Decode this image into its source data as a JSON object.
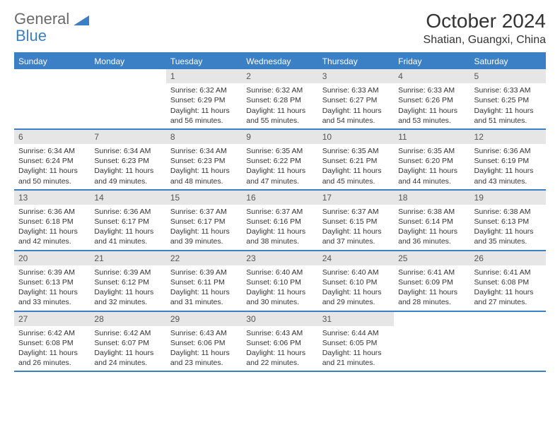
{
  "brand": {
    "text1": "General",
    "text2": "Blue"
  },
  "title": "October 2024",
  "location": "Shatian, Guangxi, China",
  "header_bg": "#3b7fc4",
  "daynum_bg": "#e6e6e6",
  "border_color": "#3b7fc4",
  "weekdays": [
    "Sunday",
    "Monday",
    "Tuesday",
    "Wednesday",
    "Thursday",
    "Friday",
    "Saturday"
  ],
  "weeks": [
    [
      null,
      null,
      {
        "n": "1",
        "sr": "6:32 AM",
        "ss": "6:29 PM",
        "dl": "11 hours and 56 minutes."
      },
      {
        "n": "2",
        "sr": "6:32 AM",
        "ss": "6:28 PM",
        "dl": "11 hours and 55 minutes."
      },
      {
        "n": "3",
        "sr": "6:33 AM",
        "ss": "6:27 PM",
        "dl": "11 hours and 54 minutes."
      },
      {
        "n": "4",
        "sr": "6:33 AM",
        "ss": "6:26 PM",
        "dl": "11 hours and 53 minutes."
      },
      {
        "n": "5",
        "sr": "6:33 AM",
        "ss": "6:25 PM",
        "dl": "11 hours and 51 minutes."
      }
    ],
    [
      {
        "n": "6",
        "sr": "6:34 AM",
        "ss": "6:24 PM",
        "dl": "11 hours and 50 minutes."
      },
      {
        "n": "7",
        "sr": "6:34 AM",
        "ss": "6:23 PM",
        "dl": "11 hours and 49 minutes."
      },
      {
        "n": "8",
        "sr": "6:34 AM",
        "ss": "6:23 PM",
        "dl": "11 hours and 48 minutes."
      },
      {
        "n": "9",
        "sr": "6:35 AM",
        "ss": "6:22 PM",
        "dl": "11 hours and 47 minutes."
      },
      {
        "n": "10",
        "sr": "6:35 AM",
        "ss": "6:21 PM",
        "dl": "11 hours and 45 minutes."
      },
      {
        "n": "11",
        "sr": "6:35 AM",
        "ss": "6:20 PM",
        "dl": "11 hours and 44 minutes."
      },
      {
        "n": "12",
        "sr": "6:36 AM",
        "ss": "6:19 PM",
        "dl": "11 hours and 43 minutes."
      }
    ],
    [
      {
        "n": "13",
        "sr": "6:36 AM",
        "ss": "6:18 PM",
        "dl": "11 hours and 42 minutes."
      },
      {
        "n": "14",
        "sr": "6:36 AM",
        "ss": "6:17 PM",
        "dl": "11 hours and 41 minutes."
      },
      {
        "n": "15",
        "sr": "6:37 AM",
        "ss": "6:17 PM",
        "dl": "11 hours and 39 minutes."
      },
      {
        "n": "16",
        "sr": "6:37 AM",
        "ss": "6:16 PM",
        "dl": "11 hours and 38 minutes."
      },
      {
        "n": "17",
        "sr": "6:37 AM",
        "ss": "6:15 PM",
        "dl": "11 hours and 37 minutes."
      },
      {
        "n": "18",
        "sr": "6:38 AM",
        "ss": "6:14 PM",
        "dl": "11 hours and 36 minutes."
      },
      {
        "n": "19",
        "sr": "6:38 AM",
        "ss": "6:13 PM",
        "dl": "11 hours and 35 minutes."
      }
    ],
    [
      {
        "n": "20",
        "sr": "6:39 AM",
        "ss": "6:13 PM",
        "dl": "11 hours and 33 minutes."
      },
      {
        "n": "21",
        "sr": "6:39 AM",
        "ss": "6:12 PM",
        "dl": "11 hours and 32 minutes."
      },
      {
        "n": "22",
        "sr": "6:39 AM",
        "ss": "6:11 PM",
        "dl": "11 hours and 31 minutes."
      },
      {
        "n": "23",
        "sr": "6:40 AM",
        "ss": "6:10 PM",
        "dl": "11 hours and 30 minutes."
      },
      {
        "n": "24",
        "sr": "6:40 AM",
        "ss": "6:10 PM",
        "dl": "11 hours and 29 minutes."
      },
      {
        "n": "25",
        "sr": "6:41 AM",
        "ss": "6:09 PM",
        "dl": "11 hours and 28 minutes."
      },
      {
        "n": "26",
        "sr": "6:41 AM",
        "ss": "6:08 PM",
        "dl": "11 hours and 27 minutes."
      }
    ],
    [
      {
        "n": "27",
        "sr": "6:42 AM",
        "ss": "6:08 PM",
        "dl": "11 hours and 26 minutes."
      },
      {
        "n": "28",
        "sr": "6:42 AM",
        "ss": "6:07 PM",
        "dl": "11 hours and 24 minutes."
      },
      {
        "n": "29",
        "sr": "6:43 AM",
        "ss": "6:06 PM",
        "dl": "11 hours and 23 minutes."
      },
      {
        "n": "30",
        "sr": "6:43 AM",
        "ss": "6:06 PM",
        "dl": "11 hours and 22 minutes."
      },
      {
        "n": "31",
        "sr": "6:44 AM",
        "ss": "6:05 PM",
        "dl": "11 hours and 21 minutes."
      },
      null,
      null
    ]
  ],
  "labels": {
    "sunrise": "Sunrise:",
    "sunset": "Sunset:",
    "daylight": "Daylight:"
  }
}
